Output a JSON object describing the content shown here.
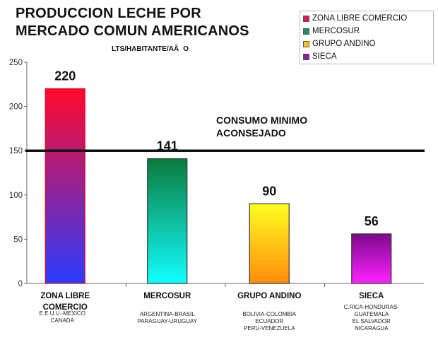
{
  "chart_data": {
    "type": "bar",
    "title_lines": [
      "PRODUCCION LECHE POR",
      "MERCADO COMUN AMERICANOS"
    ],
    "subtitle": "LTS/HABITANTE/AÃO",
    "categories": [
      {
        "label_lines": [
          "ZONA LIBRE",
          "COMERCIO"
        ],
        "countries_lines": [
          "E.E.U.U.-MEXICO",
          "CANADA"
        ]
      },
      {
        "label_lines": [
          "MERCOSUR"
        ],
        "countries_lines": [
          "ARGENTINA-BRASIL",
          "PARAGUAY-URUGUAY"
        ]
      },
      {
        "label_lines": [
          "GRUPO ANDINO"
        ],
        "countries_lines": [
          "BOLIVIA-COLOMBIA",
          "ECUADOR",
          "PERU-VENEZUELA"
        ]
      },
      {
        "label_lines": [
          "SIECA"
        ],
        "countries_lines": [
          "C.RICA-HONDURAS-",
          "GUATEMALA",
          "EL SALVADOR",
          "NICARAGUA"
        ]
      }
    ],
    "values": [
      220,
      141,
      90,
      56
    ],
    "data_labels": [
      "220",
      "141",
      "90",
      "56"
    ],
    "ylim": [
      0,
      250
    ],
    "yticks": [
      "0",
      "50",
      "100",
      "150",
      "200",
      "250"
    ],
    "reference_line": {
      "value": 150,
      "label_lines": [
        "CONSUMO MINIMO",
        "ACONSEJADO"
      ]
    },
    "legend": {
      "placement": "top-right",
      "entries": [
        {
          "name": "ZONA LIBRE COMERCIO",
          "color": "#e6194b"
        },
        {
          "name": "MERCOSUR",
          "color": "#1a8f6e"
        },
        {
          "name": "GRUPO ANDINO",
          "color": "#f4c41a"
        },
        {
          "name": "SIECA",
          "color": "#8e1d9b"
        }
      ]
    },
    "bar_gradients": [
      {
        "top": "#ff0a2a",
        "bottom": "#2a3cff"
      },
      {
        "top": "#0b7a3c",
        "bottom": "#10ffff"
      },
      {
        "top": "#ffff22",
        "bottom": "#ff8c0a"
      },
      {
        "top": "#7a0a8c",
        "bottom": "#ff22ff"
      }
    ],
    "bar_edges": [
      "#e6001e",
      "#333333",
      "#333333",
      "#333333"
    ],
    "grid": false
  }
}
